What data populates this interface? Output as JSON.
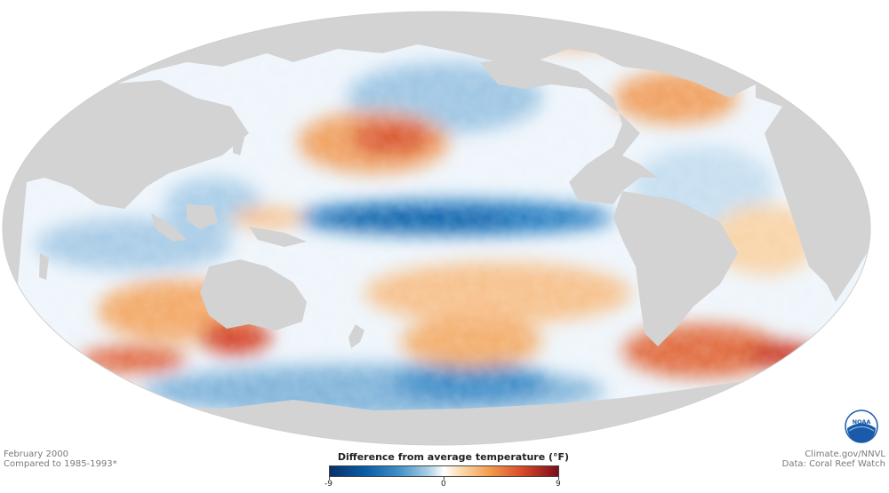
{
  "map": {
    "projection": "Mollweide (Pacific-centered)",
    "ocean_palette": {
      "cold_deep": "#0b5ea8",
      "cold": "#7fb3d9",
      "neutral": "#f7fbff",
      "warm": "#f2a463",
      "hot": "#c8321e",
      "land": "#d3d3d3"
    }
  },
  "caption_left": {
    "date": "February 2000",
    "baseline": "Compared to 1985-1993*"
  },
  "caption_right": {
    "credit": "Climate.gov/NNVL",
    "source": "Data: Coral Reef Watch"
  },
  "legend": {
    "title": "Difference from average temperature (°F)",
    "min_label": "-9",
    "mid_label": "0",
    "max_label": "9",
    "range": [
      -9,
      9
    ]
  },
  "logo": {
    "text": "NOAA",
    "icon": "noaa-logo-icon",
    "color": "#1a5aa8"
  }
}
